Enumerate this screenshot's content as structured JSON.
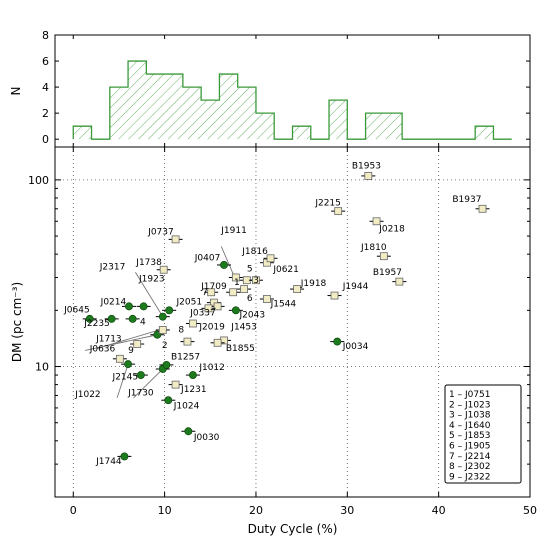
{
  "chart_data": [
    {
      "type": "bar",
      "panel": "top",
      "ylabel": "N",
      "xlim": [
        -2,
        50
      ],
      "ylim": [
        -0.6,
        8
      ],
      "yticks": [
        0,
        2,
        4,
        6,
        8
      ],
      "bin_width": 2,
      "bin_starts": [
        0,
        2,
        4,
        6,
        8,
        10,
        12,
        14,
        16,
        18,
        20,
        22,
        24,
        26,
        28,
        30,
        32,
        34,
        36,
        38,
        40,
        42,
        44,
        46
      ],
      "counts": [
        1,
        0,
        4,
        6,
        5,
        5,
        4,
        3,
        5,
        4,
        2,
        0,
        1,
        0,
        3,
        0,
        2,
        2,
        0,
        0,
        0,
        0,
        1,
        0
      ],
      "color": "#3a9a3a",
      "hatch": "diagonal"
    },
    {
      "type": "scatter",
      "panel": "bottom",
      "xlabel": "Duty Cycle (%)",
      "ylabel": "DM (pc cm⁻³)",
      "xlim": [
        -2,
        50
      ],
      "ylim": [
        2,
        150
      ],
      "yscale": "log",
      "xticks": [
        0,
        10,
        20,
        30,
        40,
        50
      ],
      "yticks": [
        10,
        100
      ],
      "grid": true,
      "colors": {
        "circle": "#1e7a1e",
        "square": "#f2ecc4"
      },
      "series": [
        {
          "marker": "circle",
          "points": [
            {
              "x": 1.8,
              "y": 18
            },
            {
              "x": 4.2,
              "y": 18
            },
            {
              "x": 6.1,
              "y": 21
            },
            {
              "x": 6.5,
              "y": 18
            },
            {
              "x": 7.7,
              "y": 21
            },
            {
              "x": 10.5,
              "y": 20
            },
            {
              "x": 9.8,
              "y": 18.5
            },
            {
              "x": 9.2,
              "y": 14.8
            },
            {
              "x": 6.0,
              "y": 10.3
            },
            {
              "x": 7.4,
              "y": 9.0
            },
            {
              "x": 9.8,
              "y": 9.7
            },
            {
              "x": 10.2,
              "y": 10.2
            },
            {
              "x": 13.1,
              "y": 9.0
            },
            {
              "x": 10.4,
              "y": 6.6
            },
            {
              "x": 12.6,
              "y": 4.5
            },
            {
              "x": 5.6,
              "y": 3.3
            },
            {
              "x": 16.5,
              "y": 35
            },
            {
              "x": 17.8,
              "y": 20
            },
            {
              "x": 28.9,
              "y": 13.6
            }
          ]
        },
        {
          "marker": "square",
          "points": [
            {
              "x": 11.2,
              "y": 48
            },
            {
              "x": 9.9,
              "y": 33
            },
            {
              "x": 17.8,
              "y": 30
            },
            {
              "x": 19.0,
              "y": 29
            },
            {
              "x": 20.0,
              "y": 29
            },
            {
              "x": 21.2,
              "y": 36
            },
            {
              "x": 21.6,
              "y": 38
            },
            {
              "x": 24.5,
              "y": 26
            },
            {
              "x": 21.2,
              "y": 23
            },
            {
              "x": 18.7,
              "y": 26
            },
            {
              "x": 17.5,
              "y": 25
            },
            {
              "x": 15.1,
              "y": 25
            },
            {
              "x": 15.4,
              "y": 22
            },
            {
              "x": 15.8,
              "y": 21
            },
            {
              "x": 14.8,
              "y": 20.5
            },
            {
              "x": 13.1,
              "y": 17
            },
            {
              "x": 9.8,
              "y": 15.7
            },
            {
              "x": 12.5,
              "y": 13.6
            },
            {
              "x": 16.5,
              "y": 13.8
            },
            {
              "x": 15.8,
              "y": 13.4
            },
            {
              "x": 7.0,
              "y": 13.2
            },
            {
              "x": 5.1,
              "y": 11.0
            },
            {
              "x": 11.2,
              "y": 8.0
            },
            {
              "x": 29.0,
              "y": 68
            },
            {
              "x": 32.3,
              "y": 105
            },
            {
              "x": 33.2,
              "y": 60
            },
            {
              "x": 34.0,
              "y": 39
            },
            {
              "x": 35.7,
              "y": 28.5
            },
            {
              "x": 28.6,
              "y": 24
            },
            {
              "x": 44.8,
              "y": 70
            }
          ]
        }
      ],
      "point_labels": [
        {
          "text": "B1953",
          "x": 30.5,
          "y": 115
        },
        {
          "text": "J2215",
          "x": 26.5,
          "y": 73
        },
        {
          "text": "J0218",
          "x": 33.5,
          "y": 53
        },
        {
          "text": "B1937",
          "x": 41.5,
          "y": 76
        },
        {
          "text": "J1810",
          "x": 31.5,
          "y": 42
        },
        {
          "text": "B1957",
          "x": 32.8,
          "y": 31
        },
        {
          "text": "J1944",
          "x": 29.5,
          "y": 26
        },
        {
          "text": "J0737",
          "x": 8.2,
          "y": 51
        },
        {
          "text": "J1911",
          "x": 16.2,
          "y": 52
        },
        {
          "text": "J1816",
          "x": 18.5,
          "y": 40
        },
        {
          "text": "J0407",
          "x": 13.3,
          "y": 37
        },
        {
          "text": "J0621",
          "x": 21.9,
          "y": 32
        },
        {
          "text": "J1918",
          "x": 24.9,
          "y": 27
        },
        {
          "text": "J1544",
          "x": 21.6,
          "y": 21
        },
        {
          "text": "J2317",
          "x": 2.9,
          "y": 33
        },
        {
          "text": "J1738",
          "x": 6.9,
          "y": 35
        },
        {
          "text": "J1923",
          "x": 7.2,
          "y": 28.5
        },
        {
          "text": "J1709",
          "x": 14.0,
          "y": 26
        },
        {
          "text": "J2051",
          "x": 11.3,
          "y": 21.5
        },
        {
          "text": "J0337",
          "x": 12.8,
          "y": 18.8
        },
        {
          "text": "J2043",
          "x": 18.2,
          "y": 18.3
        },
        {
          "text": "J0214",
          "x": 3.0,
          "y": 21.5
        },
        {
          "text": "J0645",
          "x": -1.0,
          "y": 19.5
        },
        {
          "text": "J2235",
          "x": 1.2,
          "y": 16.5
        },
        {
          "text": "J2019",
          "x": 13.8,
          "y": 15.8
        },
        {
          "text": "J1453",
          "x": 17.3,
          "y": 15.8
        },
        {
          "text": "J1713",
          "x": 2.5,
          "y": 13.6
        },
        {
          "text": "J0636",
          "x": 1.8,
          "y": 12.0
        },
        {
          "text": "B1855",
          "x": 16.7,
          "y": 12.1
        },
        {
          "text": "B1257",
          "x": 10.7,
          "y": 10.9
        },
        {
          "text": "J1012",
          "x": 13.8,
          "y": 9.6
        },
        {
          "text": "J2145",
          "x": 4.3,
          "y": 8.5
        },
        {
          "text": "J1231",
          "x": 11.8,
          "y": 7.3
        },
        {
          "text": "J1730",
          "x": 6.0,
          "y": 7.0
        },
        {
          "text": "J1022",
          "x": 0.2,
          "y": 6.85
        },
        {
          "text": "J1024",
          "x": 11.0,
          "y": 5.95
        },
        {
          "text": "J0030",
          "x": 13.2,
          "y": 4.05
        },
        {
          "text": "J0034",
          "x": 29.5,
          "y": 12.4
        },
        {
          "text": "J1744",
          "x": 2.5,
          "y": 3.0
        },
        {
          "text": "5",
          "x": 19.0,
          "y": 32.3
        },
        {
          "text": "1",
          "x": 17.6,
          "y": 27.3
        },
        {
          "text": "3",
          "x": 19.7,
          "y": 28.1
        },
        {
          "text": "7",
          "x": 14.1,
          "y": 24.2
        },
        {
          "text": "6",
          "x": 19.0,
          "y": 22.5
        },
        {
          "text": "4",
          "x": 7.3,
          "y": 16.8
        },
        {
          "text": "8",
          "x": 11.5,
          "y": 15.2
        },
        {
          "text": "2",
          "x": 9.7,
          "y": 12.6
        },
        {
          "text": "9",
          "x": 6.0,
          "y": 11.8
        }
      ],
      "legend": {
        "location": "lower right",
        "entries": [
          "1 – J0751",
          "2 – J1023",
          "3 – J1038",
          "4 – J1640",
          "5 – J1853",
          "6 – J1905",
          "7 – J2214",
          "8 – J2302",
          "9 – J2322"
        ]
      }
    }
  ]
}
